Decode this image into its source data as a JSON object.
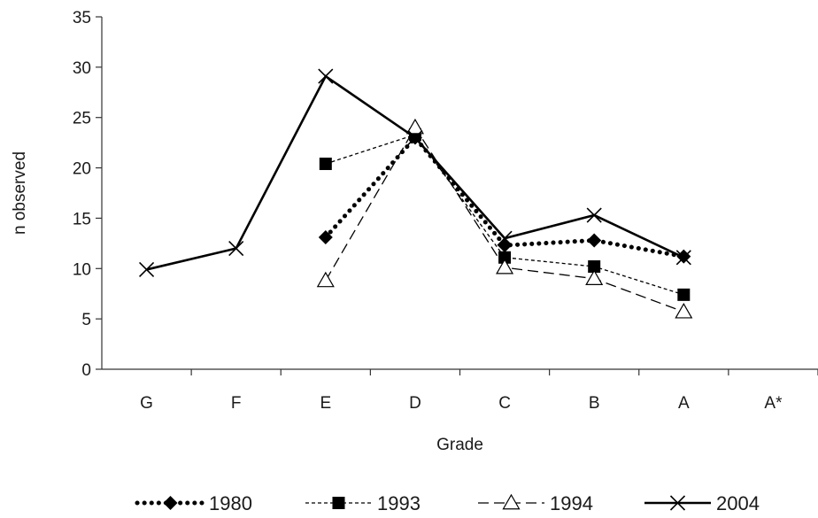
{
  "chart_data": {
    "type": "line",
    "xlabel": "Grade",
    "ylabel": "n observed",
    "ylim": [
      0,
      35
    ],
    "yticks": [
      0,
      5,
      10,
      15,
      20,
      25,
      30,
      35
    ],
    "categories": [
      "G",
      "F",
      "E",
      "D",
      "C",
      "B",
      "A",
      "A*"
    ],
    "grid": false,
    "legend": "bottom",
    "series": [
      {
        "name": "1980",
        "marker": "diamond",
        "line": "dotted-heavy",
        "color": "#000000",
        "values": [
          null,
          null,
          13.1,
          23.0,
          12.3,
          12.8,
          11.2,
          null
        ]
      },
      {
        "name": "1993",
        "marker": "square",
        "line": "short-dash",
        "color": "#000000",
        "values": [
          null,
          null,
          20.4,
          23.3,
          11.1,
          10.2,
          7.4,
          null
        ]
      },
      {
        "name": "1994",
        "marker": "triangle-open",
        "line": "long-dash",
        "color": "#000000",
        "values": [
          null,
          null,
          8.8,
          24.0,
          10.1,
          9.0,
          5.7,
          null
        ]
      },
      {
        "name": "2004",
        "marker": "x",
        "line": "solid",
        "color": "#000000",
        "values": [
          9.9,
          12.0,
          29.1,
          23.0,
          13.0,
          15.3,
          11.1,
          null
        ]
      }
    ]
  }
}
